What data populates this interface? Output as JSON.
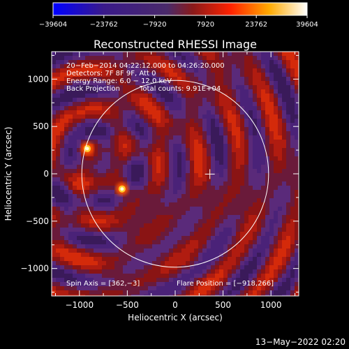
{
  "chart_data": {
    "type": "heatmap",
    "title": "Reconstructed RHESSI Image",
    "xlabel": "Heliocentric X (arcsec)",
    "ylabel": "Heliocentric Y (arcsec)",
    "xlim": [
      -1290,
      1290
    ],
    "ylim": [
      -1290,
      1290
    ],
    "xticks": [
      -1000,
      -500,
      0,
      500,
      1000
    ],
    "yticks": [
      -1000,
      -500,
      0,
      500,
      1000
    ],
    "xtick_labels": [
      "−1000",
      "−500",
      "0",
      "500",
      "1000"
    ],
    "ytick_labels": [
      "−1000",
      "−500",
      "0",
      "500",
      "1000"
    ],
    "colorbar": {
      "min": -39604,
      "max": 39604,
      "ticks": [
        -39604,
        -23762,
        -7920,
        7920,
        23762,
        39604
      ],
      "tick_labels": [
        "−39604",
        "−23762",
        "−7920",
        "7920",
        "23762",
        "39604"
      ],
      "colormap": [
        "#0000ff",
        "#3a1a8a",
        "#5c2a80",
        "#a01818",
        "#ff3300",
        "#ffaa00",
        "#ffff88",
        "#ffffff"
      ]
    },
    "annotations": [
      "20−Feb−2014 04:22:12.000 to 04:26:20.000",
      "Detectors: 7F 8F 9F, Att 0",
      "Energy Range: 6.0 − 12.0 keV",
      "Back Projection",
      "Total counts: 9.91E+04"
    ],
    "spin_axis_label": "Spin Axis = [362,−3]",
    "flare_position_label": "Flare Position = [−918,266]",
    "solar_limb": {
      "center": [
        0,
        0
      ],
      "radius_arcsec": 975
    },
    "spin_axis": [
      362,
      -3
    ],
    "flare_position": [
      -918,
      266
    ],
    "sources": [
      {
        "x": -918,
        "y": 266,
        "strength": 1.0
      },
      {
        "x": -555,
        "y": -160,
        "strength": 0.85
      }
    ],
    "timestamp": "13−May−2022 02:20"
  }
}
